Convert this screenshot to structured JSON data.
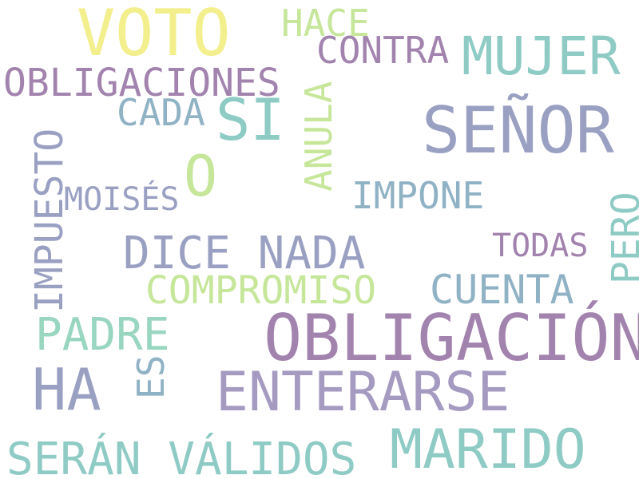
{
  "colors": {
    "background": "#ffffff",
    "purple": "#a283ae",
    "slate": "#9aa0c2",
    "teal": "#8ecbc4",
    "steel": "#8fb2c4",
    "mint": "#98d6c0",
    "lime": "#c6e69a",
    "yellow": "#f2ef8c"
  },
  "words": {
    "voto": "VOTO",
    "hace": "HACE",
    "contra": "CONTRA",
    "mujer": "MUJER",
    "obligaciones": "OBLIGACIONES",
    "cada": "CADA",
    "si": "SI",
    "senor": "SEÑOR",
    "anula": "ANULA",
    "o": "O",
    "impuesto": "IMPUESTO",
    "moises": "MOISÉS",
    "impone": "IMPONE",
    "pero": "PERO",
    "todas": "TODAS",
    "dice_nada": "DICE NADA",
    "compromiso": "COMPROMISO",
    "cuenta": "CUENTA",
    "padre": "PADRE",
    "obligacion": "OBLIGACIÓN",
    "es": "ES",
    "ha": "HA",
    "enterarse": "ENTERARSE",
    "seran_validos": "SERÁN VÁLIDOS",
    "marido": "MARIDO"
  }
}
